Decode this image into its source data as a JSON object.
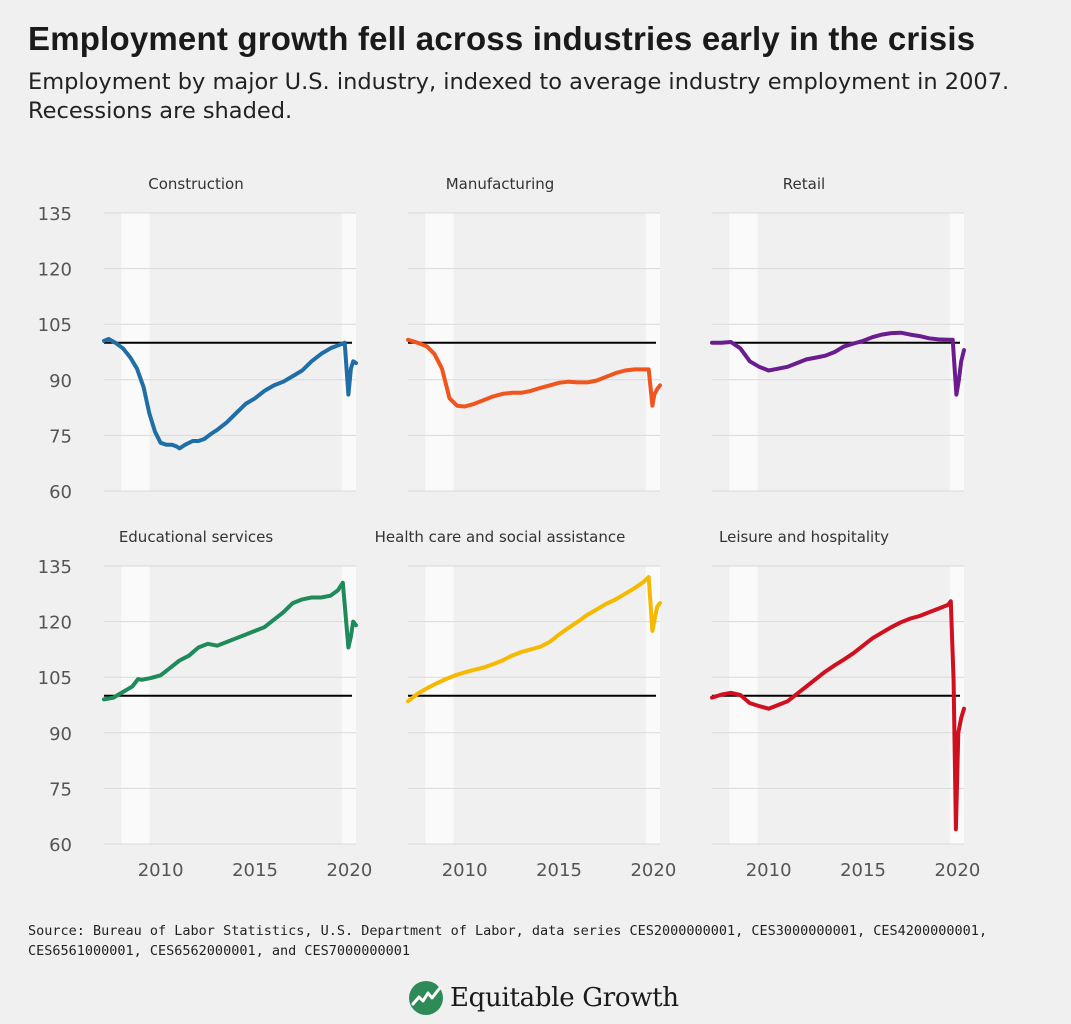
{
  "title": "Employment growth fell across industries early in the crisis",
  "subtitle": "Employment by major U.S. industry, indexed to average industry employment in 2007. Recessions are shaded.",
  "source": "Source: Bureau of Labor Statistics, U.S. Department of Labor, data series CES2000000001, CES3000000001, CES4200000001, CES6561000001, CES6562000001, and CES7000000001",
  "brand": {
    "name": "Equitable Growth",
    "icon": "equitable-growth-logo-icon",
    "icon_color": "#2e8b57"
  },
  "chart_data": {
    "type": "line",
    "layout": "small-multiples",
    "ylim": [
      60,
      135
    ],
    "yticks": [
      60,
      75,
      90,
      105,
      120,
      135
    ],
    "xlim": [
      2007,
      2020.35
    ],
    "xticks": [
      2010,
      2015,
      2020
    ],
    "reference_line": 100,
    "recessions": [
      [
        2007.92,
        2009.42
      ],
      [
        2019.6,
        2020.35
      ]
    ],
    "grid": true,
    "colors": {
      "reference_line": "#000000",
      "gridline": "#d9d9d9",
      "recession_shade": "#fafafa"
    },
    "panels": [
      {
        "name": "Construction",
        "color": "#1f6fa6",
        "x": [
          2007.0,
          2007.25,
          2007.6,
          2008.0,
          2008.4,
          2008.75,
          2009.1,
          2009.4,
          2009.7,
          2010.0,
          2010.3,
          2010.6,
          2010.85,
          2011.0,
          2011.3,
          2011.7,
          2012.0,
          2012.3,
          2012.7,
          2013.0,
          2013.5,
          2014.0,
          2014.5,
          2015.0,
          2015.5,
          2016.0,
          2016.5,
          2017.0,
          2017.5,
          2018.0,
          2018.5,
          2019.0,
          2019.5,
          2019.75,
          2019.95,
          2020.08,
          2020.2,
          2020.35
        ],
        "y": [
          100.5,
          101,
          100,
          98.5,
          96,
          93,
          88,
          81,
          76,
          73,
          72.5,
          72.5,
          72,
          71.5,
          72.5,
          73.5,
          73.5,
          74,
          75.5,
          76.5,
          78.5,
          81,
          83.5,
          85,
          87,
          88.5,
          89.5,
          91,
          92.5,
          95,
          97,
          98.5,
          99.5,
          100,
          86,
          93,
          95,
          94.5
        ]
      },
      {
        "name": "Manufacturing",
        "color": "#f0551e",
        "x": [
          2007.0,
          2007.5,
          2008.0,
          2008.4,
          2008.8,
          2009.2,
          2009.6,
          2010.0,
          2010.5,
          2011.0,
          2011.5,
          2012.0,
          2012.5,
          2013.0,
          2013.5,
          2014.0,
          2014.5,
          2015.0,
          2015.5,
          2016.0,
          2016.5,
          2017.0,
          2017.5,
          2018.0,
          2018.5,
          2019.0,
          2019.5,
          2019.75,
          2019.95,
          2020.05,
          2020.2,
          2020.35
        ],
        "y": [
          100.8,
          100,
          99,
          97,
          93,
          85,
          83,
          82.8,
          83.5,
          84.5,
          85.5,
          86.2,
          86.5,
          86.5,
          87,
          87.8,
          88.5,
          89.2,
          89.5,
          89.3,
          89.3,
          89.8,
          90.8,
          91.8,
          92.5,
          92.8,
          92.8,
          92.8,
          83,
          86,
          87.5,
          88.5
        ]
      },
      {
        "name": "Retail",
        "color": "#6a1d8f",
        "x": [
          2007.0,
          2007.5,
          2008.0,
          2008.5,
          2009.0,
          2009.5,
          2010.0,
          2010.5,
          2011.0,
          2011.5,
          2012.0,
          2012.5,
          2013.0,
          2013.5,
          2014.0,
          2014.5,
          2015.0,
          2015.5,
          2016.0,
          2016.5,
          2017.0,
          2017.5,
          2018.0,
          2018.5,
          2019.0,
          2019.5,
          2019.75,
          2019.95,
          2020.08,
          2020.2,
          2020.35
        ],
        "y": [
          100,
          100,
          100.2,
          98.5,
          95,
          93.5,
          92.5,
          93,
          93.5,
          94.5,
          95.5,
          96,
          96.5,
          97.5,
          99,
          99.8,
          100.5,
          101.5,
          102.2,
          102.6,
          102.7,
          102.2,
          101.8,
          101.2,
          100.9,
          100.8,
          100.8,
          86,
          90,
          95,
          98
        ]
      },
      {
        "name": "Educational services",
        "color": "#1f8a5a",
        "x": [
          2007.0,
          2007.5,
          2008.0,
          2008.5,
          2008.8,
          2009.0,
          2009.5,
          2010.0,
          2010.5,
          2011.0,
          2011.5,
          2012.0,
          2012.5,
          2013.0,
          2013.5,
          2014.0,
          2014.5,
          2015.0,
          2015.5,
          2016.0,
          2016.5,
          2017.0,
          2017.5,
          2018.0,
          2018.5,
          2019.0,
          2019.4,
          2019.65,
          2019.95,
          2020.08,
          2020.2,
          2020.35
        ],
        "y": [
          99,
          99.5,
          101,
          102.5,
          104.5,
          104.3,
          104.8,
          105.5,
          107.5,
          109.5,
          110.8,
          113,
          114,
          113.5,
          114.5,
          115.5,
          116.5,
          117.5,
          118.5,
          120.5,
          122.5,
          125,
          126,
          126.5,
          126.5,
          127,
          128.5,
          130.5,
          113,
          116,
          120,
          119
        ]
      },
      {
        "name": "Health care and social assistance",
        "color": "#f7b800",
        "x": [
          2007.0,
          2007.5,
          2008.0,
          2008.5,
          2009.0,
          2009.5,
          2010.0,
          2010.5,
          2011.0,
          2011.5,
          2012.0,
          2012.5,
          2013.0,
          2013.5,
          2014.0,
          2014.5,
          2015.0,
          2015.5,
          2016.0,
          2016.5,
          2017.0,
          2017.5,
          2018.0,
          2018.5,
          2019.0,
          2019.5,
          2019.75,
          2019.95,
          2020.08,
          2020.2,
          2020.35
        ],
        "y": [
          98.5,
          100.5,
          102,
          103.3,
          104.5,
          105.5,
          106.3,
          107,
          107.6,
          108.5,
          109.5,
          110.8,
          111.8,
          112.5,
          113.2,
          114.5,
          116.5,
          118.3,
          120,
          121.8,
          123.3,
          124.8,
          126,
          127.5,
          129,
          130.8,
          132,
          117.5,
          121,
          124,
          125
        ]
      },
      {
        "name": "Leisure and hospitality",
        "color": "#d0101e",
        "x": [
          2007.0,
          2007.5,
          2008.0,
          2008.5,
          2009.0,
          2009.5,
          2010.0,
          2010.5,
          2011.0,
          2011.5,
          2012.0,
          2012.5,
          2013.0,
          2013.5,
          2014.0,
          2014.5,
          2015.0,
          2015.5,
          2016.0,
          2016.5,
          2017.0,
          2017.5,
          2018.0,
          2018.5,
          2019.0,
          2019.5,
          2019.65,
          2019.8,
          2019.92,
          2020.05,
          2020.2,
          2020.35
        ],
        "y": [
          99.5,
          100.3,
          100.8,
          100.2,
          98,
          97.2,
          96.5,
          97.5,
          98.5,
          100.5,
          102.5,
          104.5,
          106.5,
          108.2,
          109.8,
          111.5,
          113.5,
          115.5,
          117,
          118.5,
          119.8,
          120.8,
          121.5,
          122.5,
          123.5,
          124.5,
          125.5,
          104,
          64,
          90,
          94,
          96.5
        ]
      }
    ]
  }
}
